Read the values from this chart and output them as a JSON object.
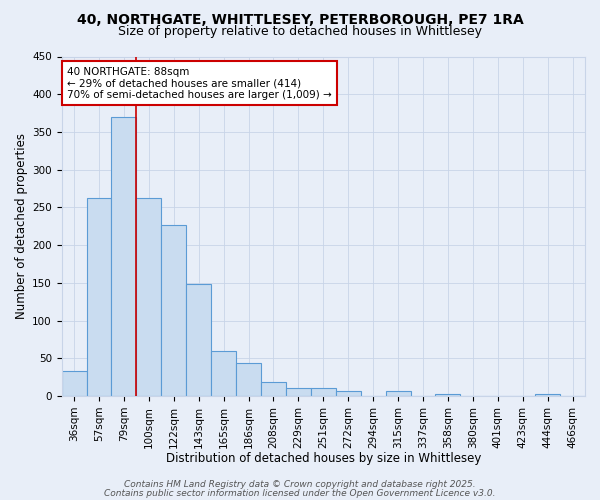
{
  "title1": "40, NORTHGATE, WHITTLESEY, PETERBOROUGH, PE7 1RA",
  "title2": "Size of property relative to detached houses in Whittlesey",
  "xlabel": "Distribution of detached houses by size in Whittlesey",
  "ylabel": "Number of detached properties",
  "bar_labels": [
    "36sqm",
    "57sqm",
    "79sqm",
    "100sqm",
    "122sqm",
    "143sqm",
    "165sqm",
    "186sqm",
    "208sqm",
    "229sqm",
    "251sqm",
    "272sqm",
    "294sqm",
    "315sqm",
    "337sqm",
    "358sqm",
    "380sqm",
    "401sqm",
    "423sqm",
    "444sqm",
    "466sqm"
  ],
  "bar_values": [
    33,
    262,
    370,
    262,
    226,
    148,
    59,
    44,
    19,
    11,
    11,
    7,
    0,
    6,
    0,
    3,
    0,
    0,
    0,
    3,
    0
  ],
  "bar_color": "#c9dcf0",
  "bar_edge_color": "#5b9bd5",
  "vline_x": 2.5,
  "vline_color": "#cc0000",
  "annotation_text": "40 NORTHGATE: 88sqm\n← 29% of detached houses are smaller (414)\n70% of semi-detached houses are larger (1,009) →",
  "annotation_box_color": "#ffffff",
  "annotation_box_edge_color": "#cc0000",
  "ylim": [
    0,
    450
  ],
  "yticks": [
    0,
    50,
    100,
    150,
    200,
    250,
    300,
    350,
    400,
    450
  ],
  "grid_color": "#c8d4e8",
  "bg_color": "#e8eef8",
  "footer1": "Contains HM Land Registry data © Crown copyright and database right 2025.",
  "footer2": "Contains public sector information licensed under the Open Government Licence v3.0.",
  "title_fontsize": 10,
  "subtitle_fontsize": 9,
  "axis_label_fontsize": 8.5,
  "tick_fontsize": 7.5,
  "annotation_fontsize": 7.5,
  "footer_fontsize": 6.5
}
